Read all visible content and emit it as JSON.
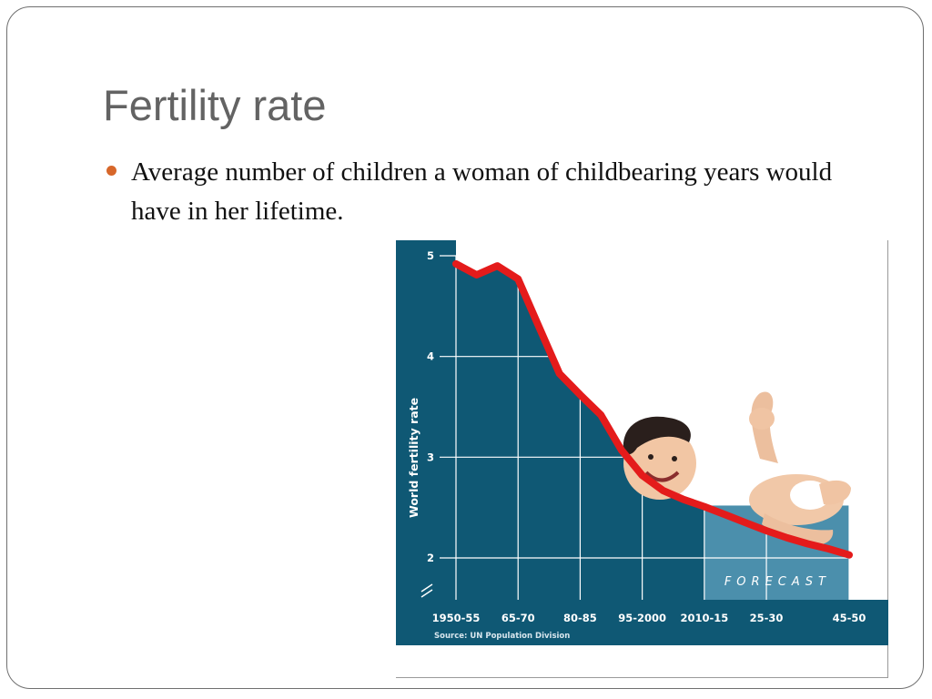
{
  "slide": {
    "title": "Fertility rate",
    "bullet": "Average number of children a woman of childbearing years would have in her lifetime."
  },
  "colors": {
    "chart_bg": "#0f5874",
    "forecast_bg": "#4b8fac",
    "line": "#e41b1b",
    "grid": "#ffffff",
    "bullet": "#d7672a",
    "title": "#636363"
  },
  "illustration": "baby-photo",
  "chart_data": {
    "type": "line",
    "ylabel": "World fertility rate",
    "ylim": [
      2,
      5
    ],
    "y_ticks": [
      "5",
      "4",
      "3",
      "2"
    ],
    "x_ticks": [
      "1950-55",
      "65-70",
      "80-85",
      "95-2000",
      "2010-15",
      "25-30",
      "45-50"
    ],
    "annotation": "FORECAST",
    "source": "Source: UN Population Division",
    "axis_break": true,
    "grid": true,
    "series": [
      {
        "x": [
          1952.5,
          1957.5,
          1962.5,
          1967.5,
          1972.5,
          1977.5,
          1982.5,
          1987.5,
          1992.5,
          1997.5,
          2002.5,
          2007.5,
          2012.5,
          2017.5,
          2022.5,
          2027.5,
          2032.5,
          2037.5,
          2042.5,
          2047.5
        ],
        "y": [
          4.92,
          4.81,
          4.9,
          4.77,
          4.3,
          3.83,
          3.62,
          3.42,
          3.07,
          2.82,
          2.67,
          2.58,
          2.51,
          2.43,
          2.35,
          2.27,
          2.2,
          2.14,
          2.09,
          2.03
        ]
      }
    ]
  }
}
